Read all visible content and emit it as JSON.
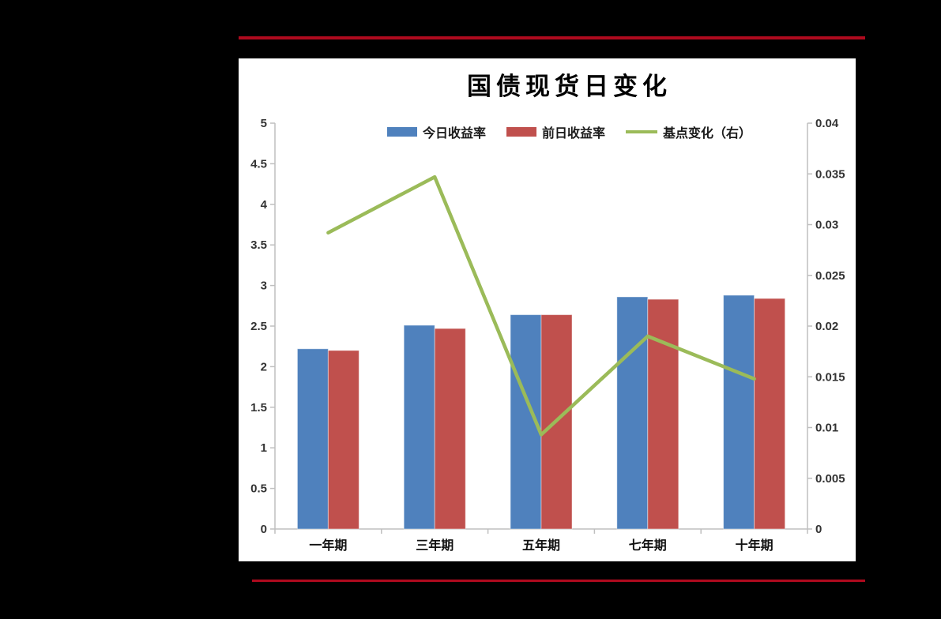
{
  "chart": {
    "title": "国债现货日变化",
    "legend": [
      {
        "label": "今日收益率",
        "marker": "bar",
        "color": "#4F81BD"
      },
      {
        "label": "前日收益率",
        "marker": "bar",
        "color": "#C0504D"
      },
      {
        "label": "基点变化（右）",
        "marker": "line",
        "color": "#9BBB59"
      }
    ]
  },
  "chart_data": {
    "type": "bar",
    "subtype": "bar+line combo, dual axis",
    "title": "国债现货日变化",
    "categories": [
      "一年期",
      "三年期",
      "五年期",
      "七年期",
      "十年期"
    ],
    "series": [
      {
        "name": "今日收益率",
        "type": "bar",
        "axis": "left",
        "color": "#4F81BD",
        "values": [
          2.22,
          2.51,
          2.64,
          2.86,
          2.88
        ]
      },
      {
        "name": "前日收益率",
        "type": "bar",
        "axis": "left",
        "color": "#C0504D",
        "values": [
          2.2,
          2.47,
          2.64,
          2.83,
          2.84
        ]
      },
      {
        "name": "基点变化（右）",
        "type": "line",
        "axis": "right",
        "color": "#9BBB59",
        "values": [
          0.0292,
          0.0347,
          0.0093,
          0.019,
          0.0148
        ]
      }
    ],
    "left_axis": {
      "min": 0,
      "max": 5,
      "step": 0.005,
      "tick_labels": [
        "5",
        "4.5",
        "4",
        "3.5",
        "3",
        "2.5",
        "2",
        "1.5",
        "1",
        "0.5",
        "0"
      ]
    },
    "right_axis": {
      "min": 0,
      "max": 0.04,
      "step": 0.005,
      "tick_labels": [
        "0.04",
        "0.035",
        "0.03",
        "0.025",
        "0.02",
        "0.015",
        "0.01",
        "0.005",
        "0"
      ]
    },
    "grid": false,
    "legend_position": "top-center"
  },
  "colors": {
    "background": "#000000",
    "panel": "#ffffff",
    "accent_rule": "#AF0A1E",
    "axis_line": "#BFBFBF",
    "tick_label": "#333333",
    "category_label": "#111111",
    "bar_blue": "#4F81BD",
    "bar_red": "#C0504D",
    "line_green": "#9BBB59"
  }
}
